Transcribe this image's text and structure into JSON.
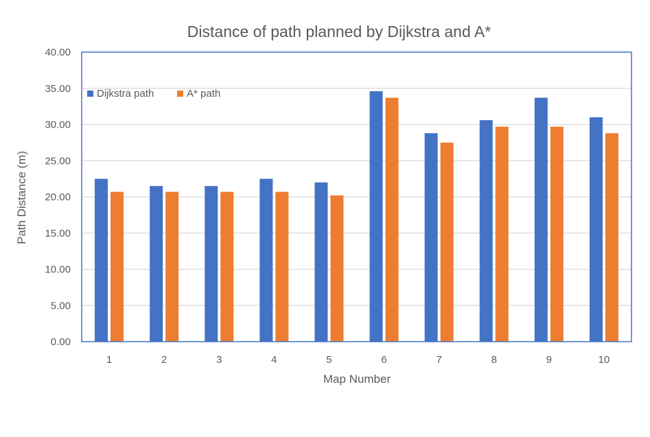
{
  "chart_data": {
    "type": "bar",
    "title": "Distance of path planned by Dijkstra and A*",
    "xlabel": "Map Number",
    "ylabel": "Path Distance (m)",
    "categories": [
      "1",
      "2",
      "3",
      "4",
      "5",
      "6",
      "7",
      "8",
      "9",
      "10"
    ],
    "series": [
      {
        "name": "Dijkstra path",
        "color": "#4472C4",
        "values": [
          22.5,
          21.5,
          21.5,
          22.5,
          22.0,
          34.6,
          28.8,
          30.6,
          33.7,
          31.0
        ]
      },
      {
        "name": "A* path",
        "color": "#ED7D31",
        "values": [
          20.7,
          20.7,
          20.7,
          20.7,
          20.2,
          33.7,
          27.5,
          29.7,
          29.7,
          28.8
        ]
      }
    ],
    "ylim": [
      0,
      40
    ],
    "yticks": [
      "0.00",
      "5.00",
      "10.00",
      "15.00",
      "20.00",
      "25.00",
      "30.00",
      "35.00",
      "40.00"
    ],
    "grid": true,
    "legend_position": "top-left",
    "plot_border_color": "#4472C4"
  }
}
